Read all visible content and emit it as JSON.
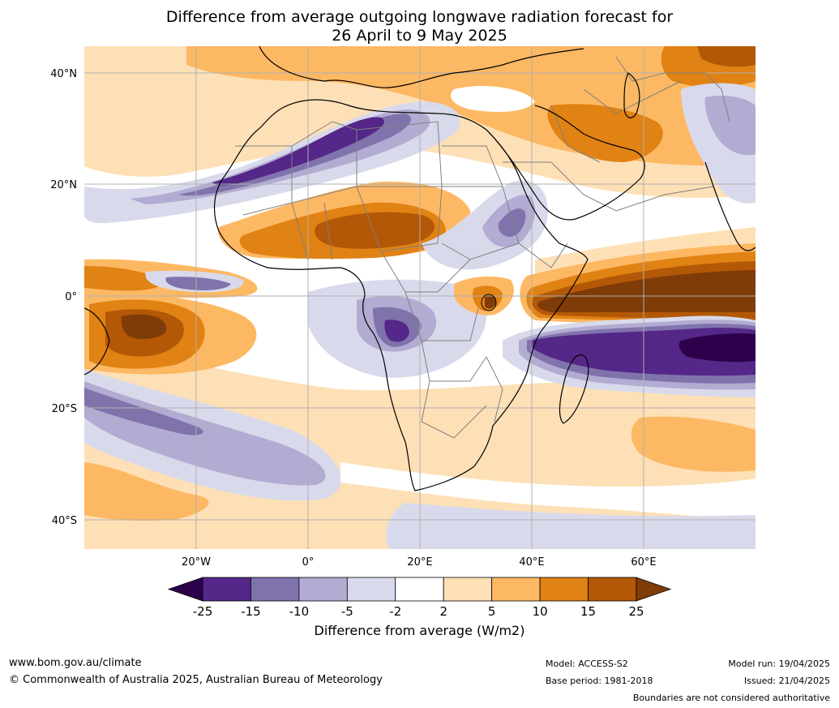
{
  "title": {
    "line1": "Difference from average outgoing longwave radiation forecast for",
    "line2": "26 April to 9 May 2025"
  },
  "map": {
    "lat_ticks": [
      "40°N",
      "20°N",
      "0°",
      "20°S",
      "40°S"
    ],
    "lon_ticks": [
      "20°W",
      "0°",
      "20°E",
      "40°E",
      "60°E"
    ],
    "extent": {
      "lon": [
        -40,
        80
      ],
      "lat": [
        -45,
        45
      ]
    }
  },
  "colorbar": {
    "tick_labels": [
      "-25",
      "-15",
      "-10",
      "-5",
      "-2",
      "2",
      "5",
      "10",
      "15",
      "25"
    ],
    "colors": [
      "#2d004b",
      "#542788",
      "#8073ac",
      "#b2abd2",
      "#d8daeb",
      "#ffffff",
      "#fee0b6",
      "#fdb863",
      "#e08214",
      "#b35806",
      "#7f3b08"
    ],
    "label": "Difference from average (W/m2)"
  },
  "footer": {
    "website": "www.bom.gov.au/climate",
    "copyright": "© Commonwealth of Australia 2025, Australian Bureau of Meteorology",
    "model": "Model: ACCESS-S2",
    "base_period": "Base period: 1981-2018",
    "model_run": "Model run: 19/04/2025",
    "issued": "Issued: 21/04/2025",
    "disclaimer": "Boundaries are not considered authoritative"
  }
}
